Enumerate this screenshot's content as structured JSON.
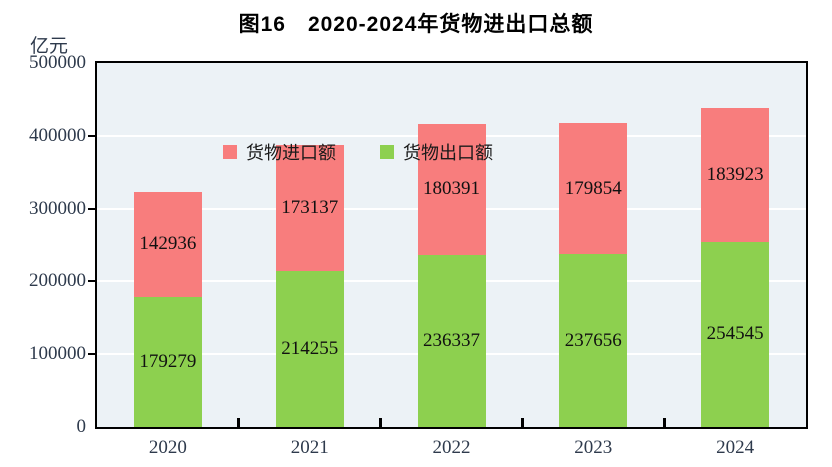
{
  "title": "图16　2020-2024年货物进出口总额",
  "unit_label": "亿元",
  "legend": {
    "items": [
      {
        "label": "货物进口额",
        "color": "#f87d7d",
        "series_key": "imports"
      },
      {
        "label": "货物出口额",
        "color": "#8dd04f",
        "series_key": "exports"
      }
    ]
  },
  "colors": {
    "import_red": "#f87d7d",
    "export_green": "#8dd04f",
    "plot_background": "#ecf2f6",
    "gridline": "#ffffff",
    "axis_border": "#000000",
    "axis_text": "#2e3a4c",
    "value_text": "#111111"
  },
  "chart_data": {
    "type": "bar",
    "stacked": true,
    "title": "图16　2020-2024年货物进出口总额",
    "ylabel": "亿元",
    "categories": [
      "2020",
      "2021",
      "2022",
      "2023",
      "2024"
    ],
    "series": [
      {
        "name": "货物出口额",
        "key": "exports",
        "color": "#8dd04f",
        "values": [
          179279,
          214255,
          236337,
          237656,
          254545
        ]
      },
      {
        "name": "货物进口额",
        "key": "imports",
        "color": "#f87d7d",
        "values": [
          142936,
          173137,
          180391,
          179854,
          183923
        ]
      }
    ],
    "totals": [
      322215,
      387392,
      416728,
      417510,
      438468
    ],
    "ylim": [
      0,
      500000
    ],
    "ytick_interval": 100000,
    "ytick_labels": [
      "0",
      "100000",
      "200000",
      "300000",
      "400000",
      "500000"
    ],
    "grid": "horizontal-white",
    "legend_position": "top-left-inside",
    "data_labels": "inside-segment-center"
  }
}
